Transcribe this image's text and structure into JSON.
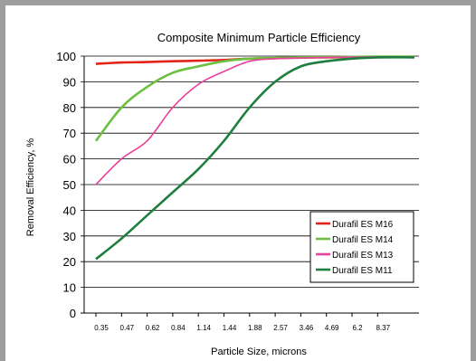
{
  "chart_data": {
    "type": "line",
    "title": "Composite Minimum Particle Efficiency",
    "xlabel": "Particle Size, microns",
    "ylabel": "Removal Efficiency, %",
    "categories": [
      "0.35",
      "0.47",
      "0.62",
      "0.84",
      "1.14",
      "1.44",
      "1.88",
      "2.57",
      "3.46",
      "4.69",
      "6.2",
      "8.37"
    ],
    "ylim": [
      0,
      100
    ],
    "yticks": [
      0,
      10,
      20,
      30,
      40,
      50,
      60,
      70,
      80,
      90,
      100
    ],
    "grid": "horizontal",
    "legend_position": "lower-right",
    "series": [
      {
        "name": "Durafil ES M16",
        "color": "#e2231a",
        "values": [
          97,
          97.5,
          97.7,
          98,
          98.2,
          98.5,
          99,
          99.2,
          99.4,
          99.5,
          99.6,
          99.7
        ]
      },
      {
        "name": "Durafil ES M14",
        "color": "#6cbf3f",
        "values": [
          67,
          80,
          88,
          93.5,
          96,
          98,
          99,
          99.3,
          99.5,
          99.6,
          99.7,
          99.8
        ]
      },
      {
        "name": "Durafil ES M13",
        "color": "#e8409c",
        "values": [
          50,
          60,
          67,
          80,
          89,
          94,
          98,
          99,
          99.3,
          99.5,
          99.6,
          99.7
        ]
      },
      {
        "name": "Durafil ES M11",
        "color": "#1e7f3f",
        "values": [
          21,
          29,
          38,
          47,
          56,
          67,
          80,
          90,
          96,
          98,
          99,
          99.5
        ]
      }
    ]
  }
}
